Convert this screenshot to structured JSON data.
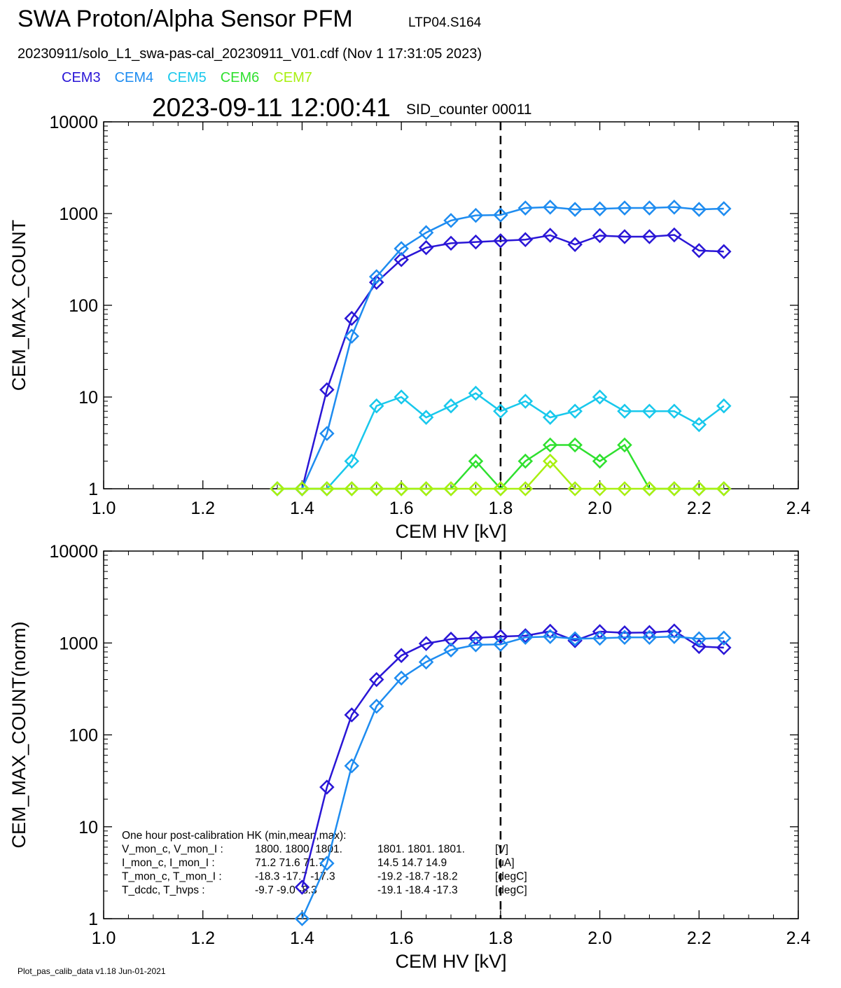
{
  "header": {
    "title": "SWA Proton/Alpha Sensor PFM",
    "subtitle": "LTP04.S164",
    "filename": "20230911/solo_L1_swa-pas-cal_20230911_V01.cdf  (Nov  1 17:31:05 2023)",
    "timestamp": "2023-09-11 12:00:41",
    "sid_counter": "SID_counter 00011"
  },
  "legend": [
    {
      "label": "CEM3",
      "color": "#2a16d6"
    },
    {
      "label": "CEM4",
      "color": "#1e8cf0"
    },
    {
      "label": "CEM5",
      "color": "#18c8ec"
    },
    {
      "label": "CEM6",
      "color": "#2fe02f"
    },
    {
      "label": "CEM7",
      "color": "#a8f010"
    }
  ],
  "footer": "Plot_pas_calib_data v1.18 Jun-01-2021",
  "chart_data": [
    {
      "type": "line",
      "xlabel": "CEM HV [kV]",
      "ylabel": "CEM_MAX_COUNT",
      "xlim": [
        1.0,
        2.4
      ],
      "ylim": [
        1,
        10000
      ],
      "yscale": "log",
      "xticks": [
        "1.0",
        "1.2",
        "1.4",
        "1.6",
        "1.8",
        "2.0",
        "2.2",
        "2.4"
      ],
      "yticks": [
        "1",
        "10",
        "100",
        "1000",
        "10000"
      ],
      "vline": 1.8,
      "series": [
        {
          "name": "CEM3",
          "color": "#2a16d6",
          "x": [
            1.4,
            1.45,
            1.5,
            1.55,
            1.6,
            1.65,
            1.7,
            1.75,
            1.8,
            1.85,
            1.9,
            1.95,
            2.0,
            2.05,
            2.1,
            2.15,
            2.2,
            2.25
          ],
          "y": [
            1,
            12,
            72,
            178,
            315,
            425,
            475,
            490,
            505,
            520,
            580,
            460,
            575,
            560,
            560,
            585,
            395,
            385
          ]
        },
        {
          "name": "CEM4",
          "color": "#1e8cf0",
          "x": [
            1.4,
            1.45,
            1.5,
            1.55,
            1.6,
            1.65,
            1.7,
            1.75,
            1.8,
            1.85,
            1.9,
            1.95,
            2.0,
            2.05,
            2.1,
            2.15,
            2.2,
            2.25
          ],
          "y": [
            1,
            4,
            46,
            205,
            415,
            620,
            840,
            955,
            965,
            1150,
            1175,
            1110,
            1125,
            1150,
            1150,
            1175,
            1110,
            1130
          ]
        },
        {
          "name": "CEM5",
          "color": "#18c8ec",
          "x": [
            1.35,
            1.4,
            1.45,
            1.5,
            1.55,
            1.6,
            1.65,
            1.7,
            1.75,
            1.8,
            1.85,
            1.9,
            1.95,
            2.0,
            2.05,
            2.1,
            2.15,
            2.2,
            2.25
          ],
          "y": [
            1,
            1,
            1,
            2,
            8,
            10,
            6,
            8,
            11,
            7,
            9,
            6,
            7,
            10,
            7,
            7,
            7,
            5,
            8
          ]
        },
        {
          "name": "CEM6",
          "color": "#2fe02f",
          "x": [
            1.35,
            1.4,
            1.45,
            1.5,
            1.55,
            1.6,
            1.65,
            1.7,
            1.75,
            1.8,
            1.85,
            1.9,
            1.95,
            2.0,
            2.05,
            2.1,
            2.15,
            2.2,
            2.25
          ],
          "y": [
            1,
            1,
            1,
            1,
            1,
            1,
            1,
            1,
            2,
            1,
            2,
            3,
            3,
            2,
            3,
            1,
            1,
            1,
            1
          ]
        },
        {
          "name": "CEM7",
          "color": "#a8f010",
          "x": [
            1.35,
            1.4,
            1.45,
            1.5,
            1.55,
            1.6,
            1.65,
            1.7,
            1.75,
            1.8,
            1.85,
            1.9,
            1.95,
            2.0,
            2.05,
            2.1,
            2.15,
            2.2,
            2.25
          ],
          "y": [
            1,
            1,
            1,
            1,
            1,
            1,
            1,
            1,
            1,
            1,
            1,
            2,
            1,
            1,
            1,
            1,
            1,
            1,
            1
          ]
        }
      ]
    },
    {
      "type": "line",
      "xlabel": "CEM HV [kV]",
      "ylabel": "CEM_MAX_COUNT(norm)",
      "xlim": [
        1.0,
        2.4
      ],
      "ylim": [
        1,
        10000
      ],
      "yscale": "log",
      "xticks": [
        "1.0",
        "1.2",
        "1.4",
        "1.6",
        "1.8",
        "2.0",
        "2.2",
        "2.4"
      ],
      "yticks": [
        "1",
        "10",
        "100",
        "1000",
        "10000"
      ],
      "vline": 1.8,
      "series": [
        {
          "name": "CEM3",
          "color": "#2a16d6",
          "x": [
            1.4,
            1.45,
            1.5,
            1.55,
            1.6,
            1.65,
            1.7,
            1.75,
            1.8,
            1.85,
            1.9,
            1.95,
            2.0,
            2.05,
            2.1,
            2.15,
            2.2,
            2.25
          ],
          "y": [
            2.2,
            27,
            165,
            400,
            730,
            985,
            1100,
            1135,
            1175,
            1200,
            1340,
            1060,
            1330,
            1290,
            1300,
            1350,
            915,
            890
          ]
        },
        {
          "name": "CEM4",
          "color": "#1e8cf0",
          "x": [
            1.4,
            1.45,
            1.5,
            1.55,
            1.6,
            1.65,
            1.7,
            1.75,
            1.8,
            1.85,
            1.9,
            1.95,
            2.0,
            2.05,
            2.1,
            2.15,
            2.2,
            2.25
          ],
          "y": [
            1,
            4,
            46,
            205,
            415,
            620,
            840,
            955,
            965,
            1150,
            1175,
            1110,
            1125,
            1150,
            1150,
            1175,
            1110,
            1130
          ]
        }
      ],
      "annotation": {
        "title": "One hour post-calibration HK (min,mean,max):",
        "rows": [
          [
            "V_mon_c, V_mon_I :",
            "1800.  1800.  1801.",
            "1801.  1801.  1801.",
            "[V]"
          ],
          [
            "I_mon_c,  I_mon_I :",
            "71.2   71.6   71.7",
            "14.5   14.7   14.9",
            "[uA]"
          ],
          [
            "T_mon_c, T_mon_I :",
            "-18.3  -17.7  -17.3",
            "-19.2  -18.7  -18.2",
            "[degC]"
          ],
          [
            "T_dcdc,    T_hvps :",
            "-9.7   -9.0   -8.3",
            "-19.1  -18.4  -17.3",
            "[degC]"
          ]
        ]
      }
    }
  ]
}
